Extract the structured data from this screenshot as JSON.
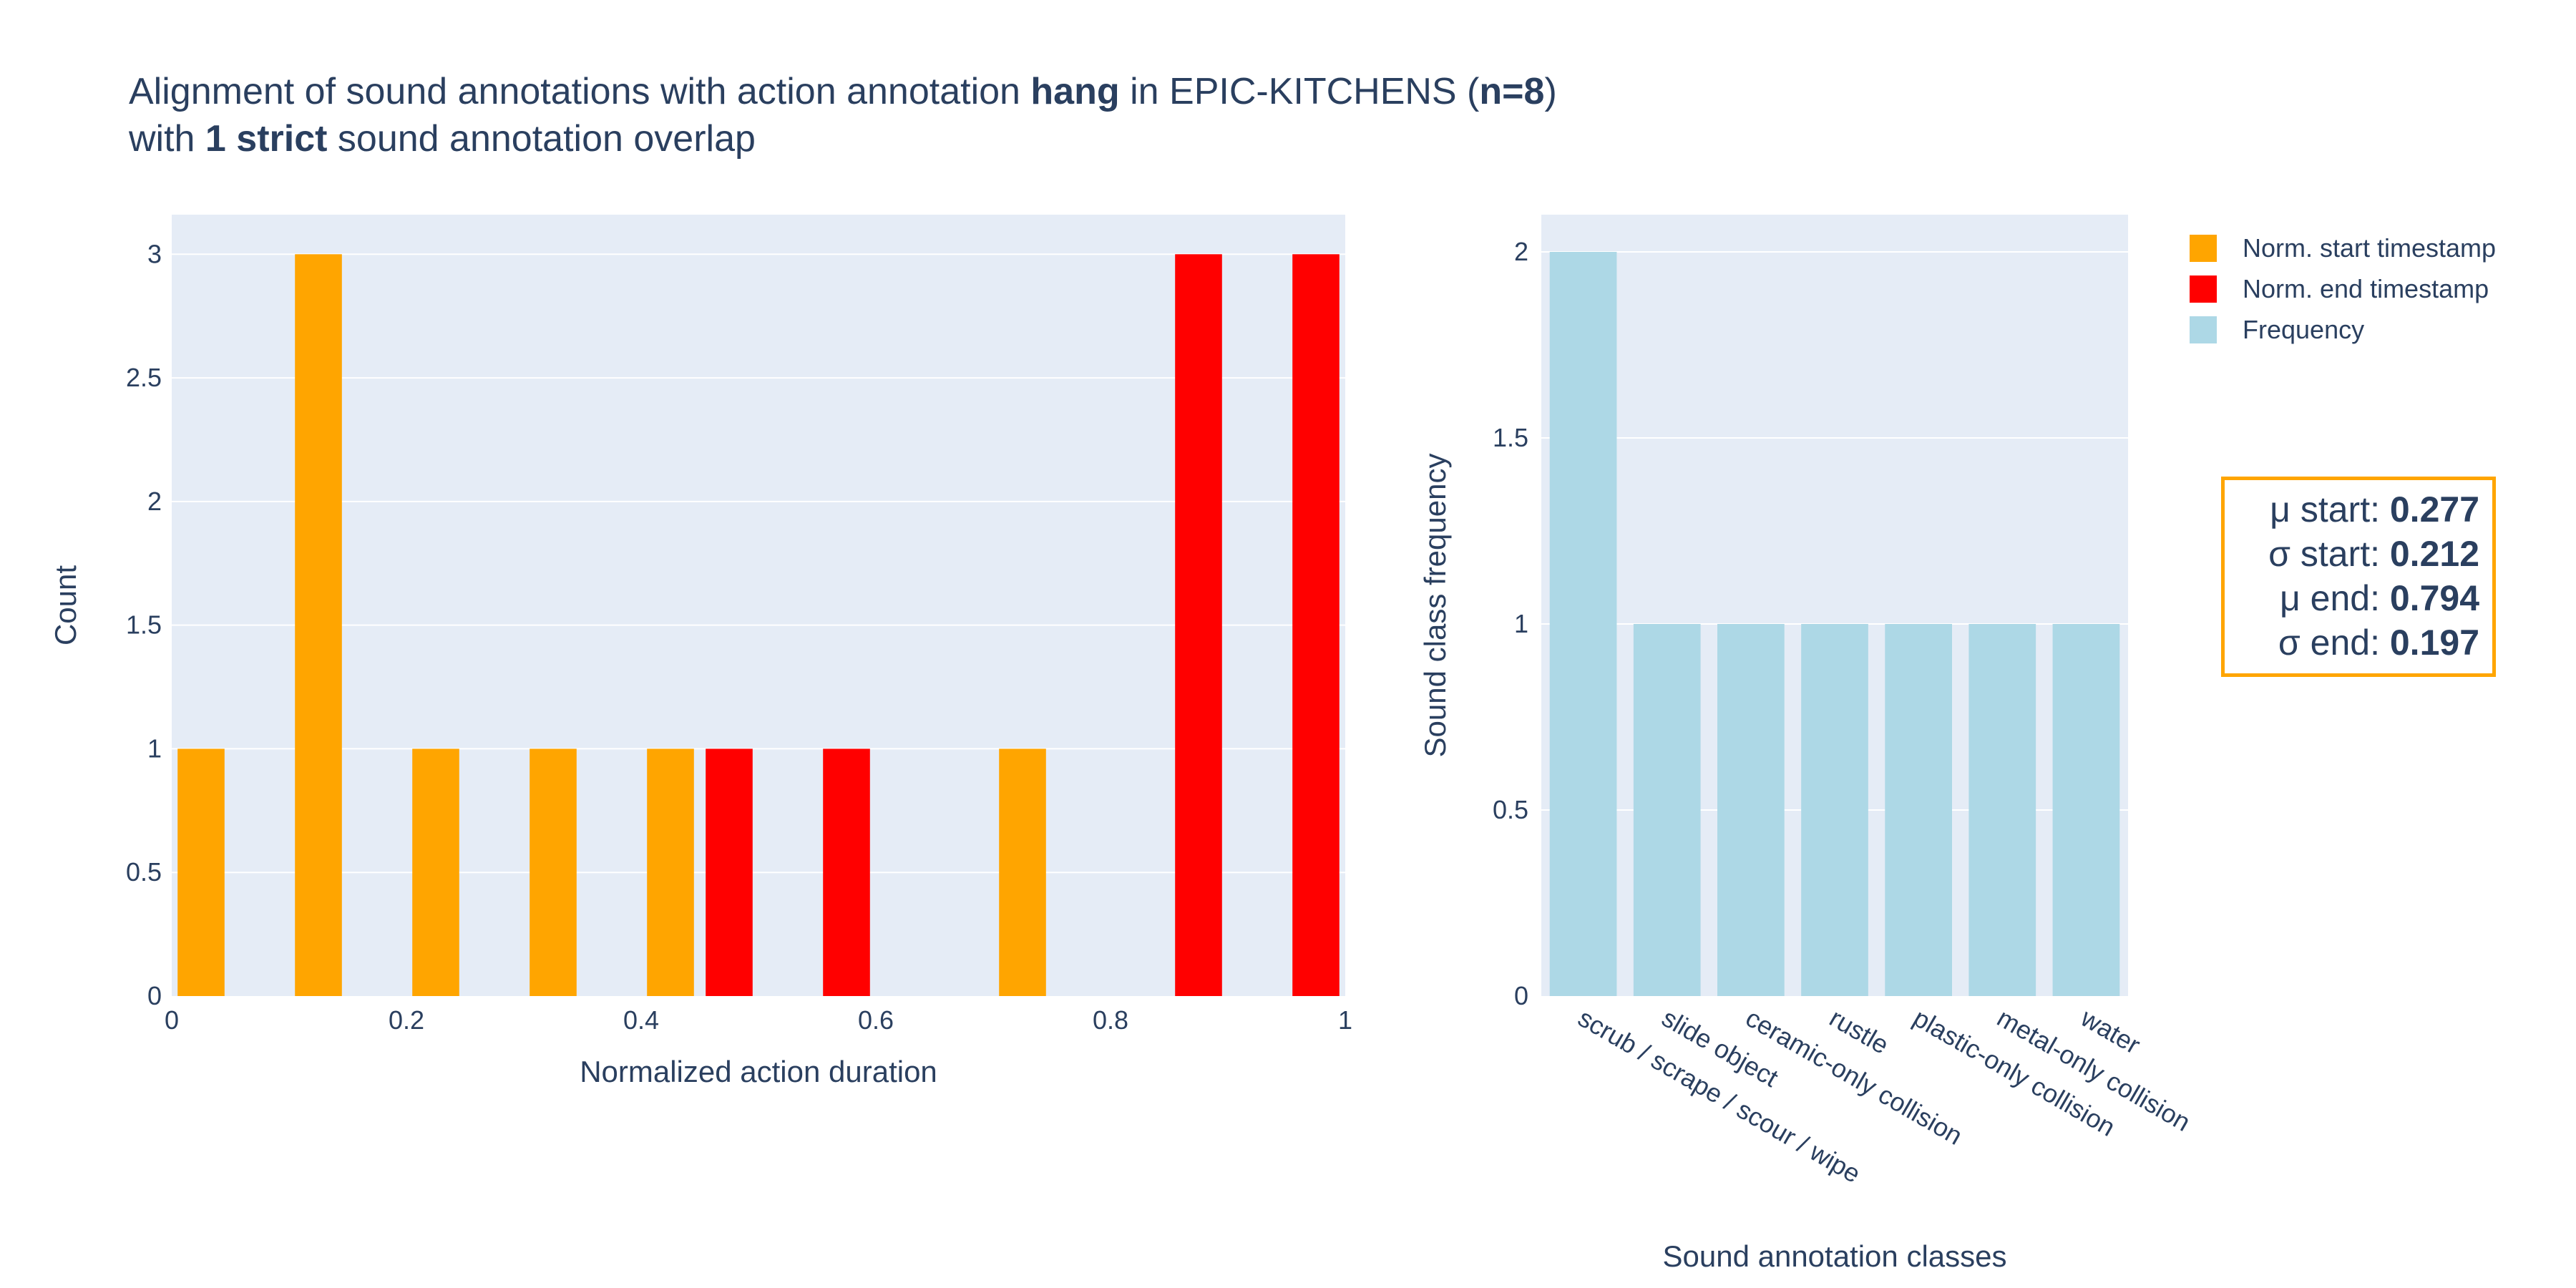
{
  "title": {
    "line1_prefix": "Alignment of sound annotations with action annotation ",
    "action": "hang",
    "line1_mid": " in EPIC-KITCHENS (",
    "n_label": "n=8",
    "line1_suffix": ")",
    "line2_prefix": "with ",
    "overlap": "1 strict",
    "line2_suffix": " sound annotation overlap"
  },
  "colors": {
    "start": "#FFA500",
    "end": "#FF0000",
    "frequency": "#ADD8E6",
    "plot_bg": "#E5ECF6",
    "grid": "#FFFFFF",
    "text": "#2a3f5f"
  },
  "legend": [
    {
      "label": "Norm. start timestamp",
      "color": "#FFA500"
    },
    {
      "label": "Norm. end timestamp",
      "color": "#FF0000"
    },
    {
      "label": "Frequency",
      "color": "#ADD8E6"
    }
  ],
  "stats": [
    {
      "label": "μ start: ",
      "value": "0.277"
    },
    {
      "label": "σ start: ",
      "value": "0.212"
    },
    {
      "label": "μ end: ",
      "value": "0.794"
    },
    {
      "label": "σ end: ",
      "value": "0.197"
    }
  ],
  "chart_data": [
    {
      "type": "bar",
      "subtype": "histogram",
      "xlabel": "Normalized action duration",
      "ylabel": "Count",
      "xlim": [
        0,
        1
      ],
      "ylim": [
        0,
        3.16
      ],
      "xticks": [
        0,
        0.2,
        0.4,
        0.6,
        0.8,
        1
      ],
      "xtick_labels": [
        "0",
        "0.2",
        "0.4",
        "0.6",
        "0.8",
        "1"
      ],
      "yticks": [
        0,
        0.5,
        1,
        1.5,
        2,
        2.5,
        3
      ],
      "ytick_labels": [
        "0",
        "0.5",
        "1",
        "1.5",
        "2",
        "2.5",
        "3"
      ],
      "grid": true,
      "bin_width": 0.05,
      "series": [
        {
          "name": "Norm. start timestamp",
          "bins": [
            {
              "x0": 0.0,
              "x1": 0.05,
              "count": 1
            },
            {
              "x0": 0.1,
              "x1": 0.15,
              "count": 3
            },
            {
              "x0": 0.2,
              "x1": 0.25,
              "count": 1
            },
            {
              "x0": 0.3,
              "x1": 0.35,
              "count": 1
            },
            {
              "x0": 0.4,
              "x1": 0.45,
              "count": 1
            },
            {
              "x0": 0.7,
              "x1": 0.75,
              "count": 1
            }
          ]
        },
        {
          "name": "Norm. end timestamp",
          "bins": [
            {
              "x0": 0.45,
              "x1": 0.5,
              "count": 1
            },
            {
              "x0": 0.55,
              "x1": 0.6,
              "count": 1
            },
            {
              "x0": 0.85,
              "x1": 0.9,
              "count": 3
            },
            {
              "x0": 0.95,
              "x1": 1.0,
              "count": 3
            }
          ]
        }
      ]
    },
    {
      "type": "bar",
      "xlabel": "Sound annotation classes",
      "ylabel": "Sound class frequency",
      "ylim": [
        0,
        2.1
      ],
      "yticks": [
        0,
        0.5,
        1,
        1.5,
        2
      ],
      "ytick_labels": [
        "0",
        "0.5",
        "1",
        "1.5",
        "2"
      ],
      "grid": true,
      "categories": [
        "scrub / scrape / scour / wipe",
        "slide object",
        "ceramic-only collision",
        "rustle",
        "plastic-only collision",
        "metal-only collision",
        "water"
      ],
      "series": [
        {
          "name": "Frequency",
          "values": [
            2,
            1,
            1,
            1,
            1,
            1,
            1
          ]
        }
      ]
    }
  ]
}
